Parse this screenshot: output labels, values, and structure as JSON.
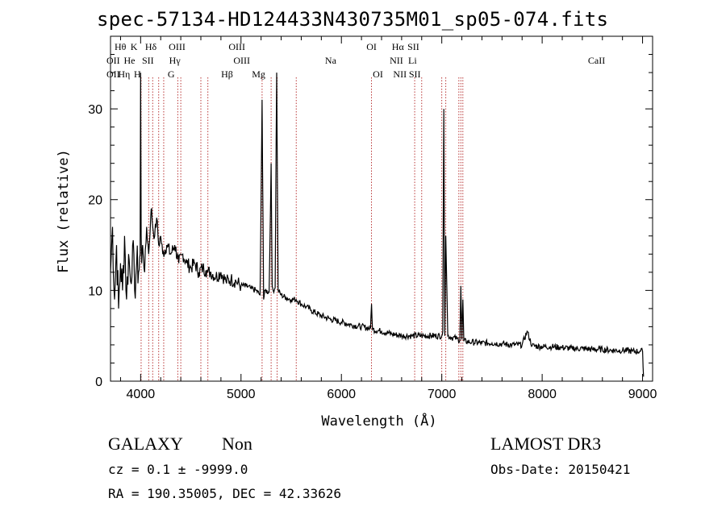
{
  "chart_data": {
    "type": "line",
    "title": "spec-57134-HD124433N430735M01_sp05-074.fits",
    "xlabel": "Wavelength (Å)",
    "ylabel": "Flux (relative)",
    "xlim": [
      3700,
      9100
    ],
    "ylim": [
      0,
      38
    ],
    "x_ticks": [
      4000,
      5000,
      6000,
      7000,
      8000,
      9000
    ],
    "y_ticks": [
      0,
      10,
      20,
      30
    ],
    "series": [
      {
        "name": "flux",
        "x": [
          3700,
          3720,
          3740,
          3760,
          3780,
          3800,
          3820,
          3840,
          3860,
          3880,
          3900,
          3920,
          3940,
          3960,
          3980,
          3995,
          4000,
          4005,
          4010,
          4020,
          4040,
          4060,
          4080,
          4100,
          4110,
          4120,
          4140,
          4160,
          4180,
          4200,
          4220,
          4260,
          4300,
          4340,
          4380,
          4420,
          4460,
          4500,
          4540,
          4580,
          4620,
          4650,
          4660,
          4670,
          4700,
          4750,
          4800,
          4850,
          4900,
          4950,
          5000,
          5050,
          5100,
          5150,
          5190,
          5210,
          5225,
          5240,
          5280,
          5300,
          5310,
          5320,
          5340,
          5355,
          5370,
          5400,
          5450,
          5500,
          5550,
          5600,
          5650,
          5700,
          5800,
          5900,
          6000,
          6100,
          6200,
          6290,
          6300,
          6310,
          6400,
          6500,
          6600,
          6700,
          6800,
          6900,
          7000,
          7010,
          7020,
          7030,
          7040,
          7060,
          7100,
          7150,
          7180,
          7190,
          7200,
          7210,
          7220,
          7300,
          7400,
          7500,
          7600,
          7700,
          7800,
          7850,
          7900,
          8000,
          8100,
          8200,
          8300,
          8400,
          8500,
          8600,
          8700,
          8800,
          8900,
          8980,
          9000,
          9010
        ],
        "y": [
          12,
          17,
          9,
          15,
          8,
          13,
          10,
          16,
          9,
          14,
          11,
          15,
          10,
          13,
          12,
          14,
          34,
          16,
          13,
          15,
          12,
          17,
          14,
          18,
          19,
          17,
          16,
          18,
          15,
          16,
          14,
          15,
          14,
          15,
          13,
          14,
          13,
          12.5,
          13,
          12,
          12.5,
          12.2,
          12.2,
          12,
          12,
          11.5,
          12,
          11,
          11.2,
          11,
          10.5,
          10.5,
          10.2,
          10,
          9.5,
          31,
          9,
          10,
          9.8,
          24,
          10.5,
          10,
          10.3,
          34,
          10,
          9.5,
          9.2,
          9,
          9,
          8.5,
          8.2,
          7.8,
          7.2,
          6.8,
          6.5,
          6.2,
          6,
          5.8,
          8.5,
          5.7,
          5.5,
          5.2,
          5,
          5,
          5,
          5,
          5,
          5.5,
          30,
          5,
          16,
          5,
          4.8,
          4.7,
          4.5,
          10.5,
          4.6,
          9,
          4.4,
          4.3,
          4.2,
          4.2,
          4.1,
          4,
          4,
          5.5,
          3.9,
          3.8,
          3.8,
          3.7,
          3.6,
          3.6,
          3.5,
          3.5,
          3.4,
          3.4,
          3.3,
          3.3,
          3.3,
          0.5
        ]
      }
    ],
    "line_labels": [
      {
        "label": "OII",
        "wavelength": 3727,
        "row": 2
      },
      {
        "label": "OII",
        "wavelength": 3727,
        "row": 3
      },
      {
        "label": "Hθ",
        "wavelength": 3798,
        "row": 1
      },
      {
        "label": "He",
        "wavelength": 3889,
        "row": 2
      },
      {
        "label": "Hη",
        "wavelength": 3835,
        "row": 3
      },
      {
        "label": "K",
        "wavelength": 3934,
        "row": 1
      },
      {
        "label": "H",
        "wavelength": 3968,
        "row": 3
      },
      {
        "label": "SII",
        "wavelength": 4072,
        "row": 2
      },
      {
        "label": "Hδ",
        "wavelength": 4102,
        "row": 1
      },
      {
        "label": "OIII",
        "wavelength": 4363,
        "row": 1
      },
      {
        "label": "Hγ",
        "wavelength": 4340,
        "row": 2
      },
      {
        "label": "G",
        "wavelength": 4304,
        "row": 3
      },
      {
        "label": "OIII",
        "wavelength": 4959,
        "row": 1
      },
      {
        "label": "OIII",
        "wavelength": 5007,
        "row": 2
      },
      {
        "label": "Hβ",
        "wavelength": 4861,
        "row": 3
      },
      {
        "label": "Mg",
        "wavelength": 5175,
        "row": 3
      },
      {
        "label": "Na",
        "wavelength": 5893,
        "row": 2
      },
      {
        "label": "OI",
        "wavelength": 6300,
        "row": 1
      },
      {
        "label": "OI",
        "wavelength": 6364,
        "row": 3
      },
      {
        "label": "Hα",
        "wavelength": 6563,
        "row": 1
      },
      {
        "label": "SII",
        "wavelength": 6717,
        "row": 1
      },
      {
        "label": "NII",
        "wavelength": 6548,
        "row": 2
      },
      {
        "label": "Li",
        "wavelength": 6708,
        "row": 2
      },
      {
        "label": "NII",
        "wavelength": 6583,
        "row": 3
      },
      {
        "label": "SII",
        "wavelength": 6731,
        "row": 3
      },
      {
        "label": "CaII",
        "wavelength": 8542,
        "row": 2
      }
    ],
    "marker_lines_x": [
      4005,
      4080,
      4120,
      4180,
      4230,
      4370,
      4400,
      4600,
      4670,
      5210,
      5300,
      5360,
      5550,
      6300,
      6730,
      6800,
      7000,
      7040,
      7170,
      7190,
      7210
    ]
  },
  "info": {
    "class": "GALAXY",
    "subclass": "Non",
    "survey": "LAMOST DR3",
    "cz_line": "cz = 0.1 ± -9999.0",
    "obs_date": "Obs-Date: 20150421",
    "coords": "RA = 190.35005, DEC =  42.33626"
  }
}
